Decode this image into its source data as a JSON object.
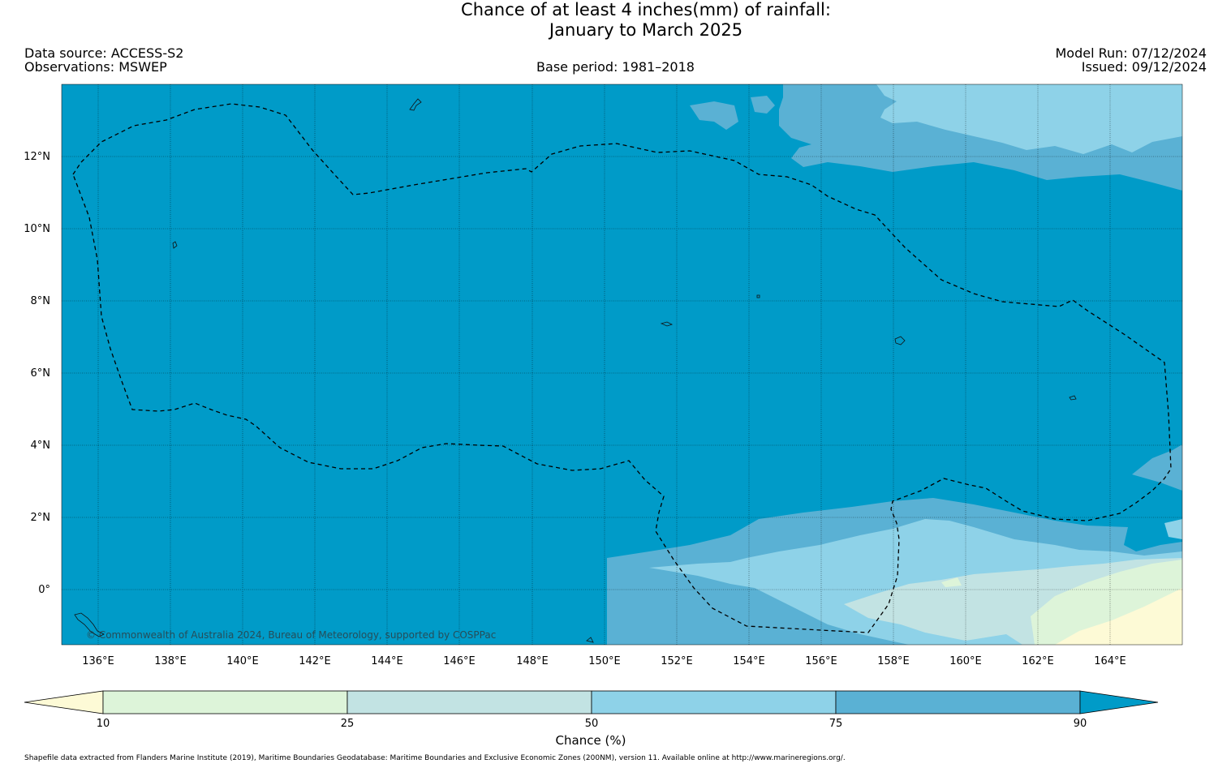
{
  "title": {
    "line1": "Chance of at least 4 inches(mm) of rainfall:",
    "line2": "January to March 2025"
  },
  "header": {
    "data_source": "Data source: ACCESS-S2",
    "observations": "Observations: MSWEP",
    "base_period": "Base period: 1981–2018",
    "model_run": "Model Run: 07/12/2024",
    "issued": "Issued: 09/12/2024"
  },
  "map": {
    "lat_labels": [
      "12°N",
      "10°N",
      "8°N",
      "6°N",
      "4°N",
      "2°N",
      "0°"
    ],
    "lon_labels": [
      "136°E",
      "138°E",
      "140°E",
      "142°E",
      "144°E",
      "146°E",
      "148°E",
      "150°E",
      "152°E",
      "154°E",
      "156°E",
      "158°E",
      "160°E",
      "162°E",
      "164°E"
    ],
    "attribution": "© Commonwealth of Australia 2024, Bureau of Meteorology, supported by COSPPac",
    "colors": {
      "above90": "#009bc8",
      "c75_90": "#5ab1d4",
      "c50_75": "#8ed2e8",
      "c25_50": "#c2e3e3",
      "c10_25": "#ddf4d9",
      "below10": "#fdfad6"
    }
  },
  "colorbar": {
    "ticks": [
      "10",
      "25",
      "50",
      "75",
      "90"
    ],
    "label": "Chance (%)"
  },
  "footer": {
    "shapefile_note": "Shapefile data extracted from Flanders Marine Institute (2019), Maritime Boundaries Geodatabase: Maritime Boundaries and Exclusive Economic Zones (200NM), version 11. Available online at http://www.marineregions.org/."
  }
}
